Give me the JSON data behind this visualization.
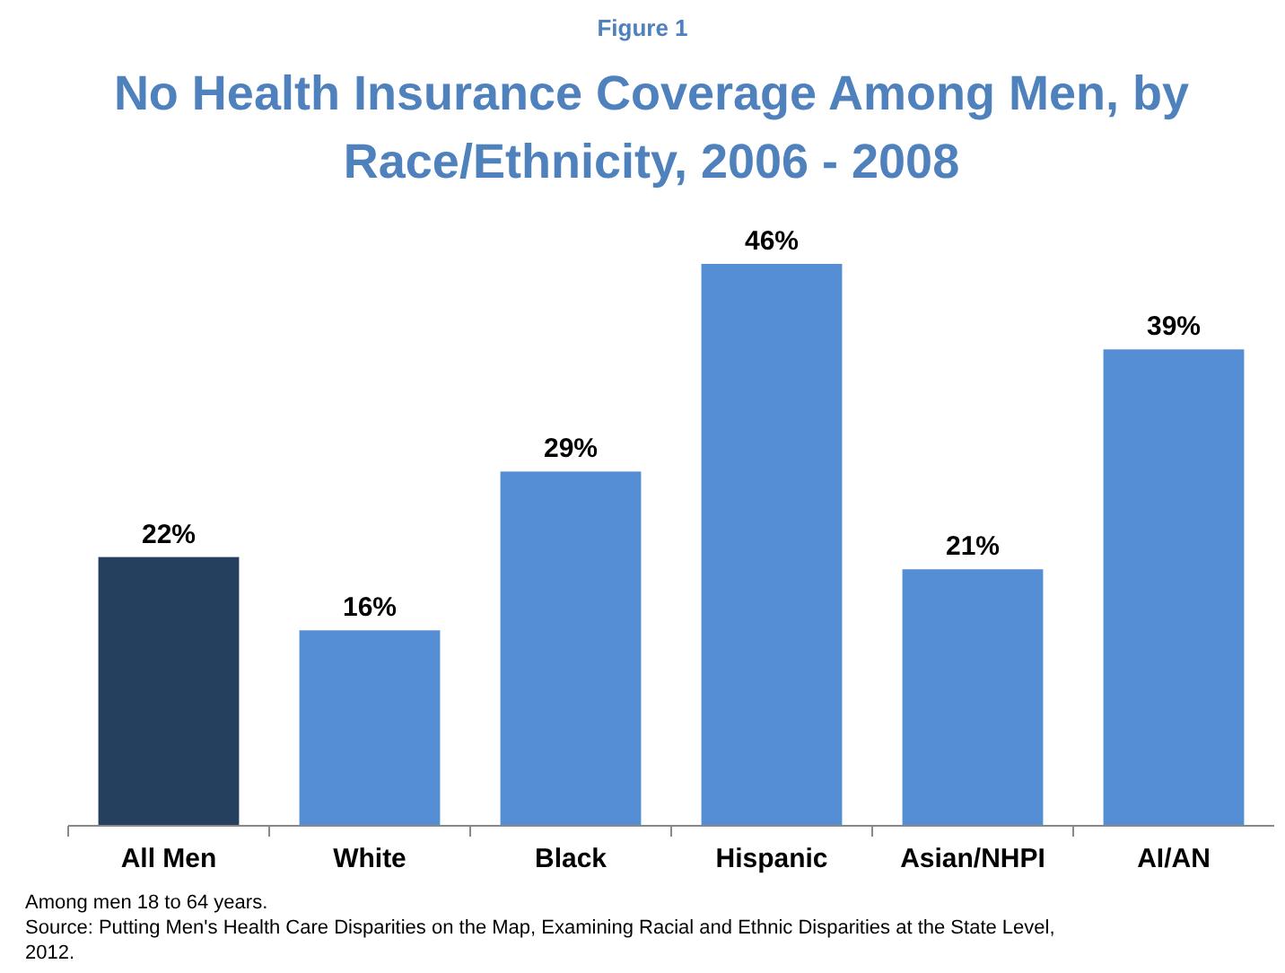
{
  "chart_data": {
    "type": "bar",
    "subtitle": "Figure 1",
    "title": "No Health Insurance Coverage Among Men, by Race/Ethnicity, 2006 - 2008",
    "categories": [
      "All Men",
      "White",
      "Black",
      "Hispanic",
      "Asian/NHPI",
      "AI/AN"
    ],
    "values": [
      22,
      16,
      29,
      46,
      21,
      39
    ],
    "colors": [
      "#253f5f",
      "#558ed5",
      "#558ed5",
      "#558ed5",
      "#558ed5",
      "#558ed5"
    ],
    "data_labels": true,
    "value_labels": [
      "22%",
      "16%",
      "29%",
      "46%",
      "21%",
      "39%"
    ],
    "annotations": [
      "Among men 18 to 64 years.",
      "Source: Putting Men's Health Care Disparities on the Map, Examining Racial and Ethnic Disparities at the State Level, 2012."
    ]
  }
}
